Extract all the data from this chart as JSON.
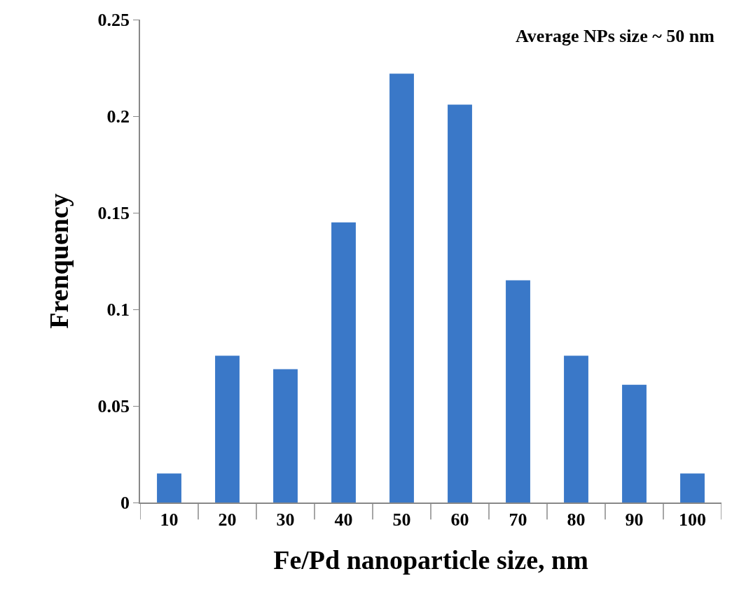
{
  "chart_data": {
    "type": "bar",
    "xlabel": "Fe/Pd nanoparticle size, nm",
    "ylabel": "Frenquency",
    "categories": [
      "10",
      "20",
      "30",
      "40",
      "50",
      "60",
      "70",
      "80",
      "90",
      "100"
    ],
    "values": [
      0.015,
      0.076,
      0.069,
      0.145,
      0.222,
      0.206,
      0.115,
      0.076,
      0.061,
      0.015
    ],
    "color": "#3a78c8",
    "ylim": [
      0,
      0.25
    ],
    "yticks": [
      0,
      0.05,
      0.1,
      0.15,
      0.2,
      0.25
    ],
    "annotations": [
      "Average NPs size ~ 50 nm"
    ]
  }
}
